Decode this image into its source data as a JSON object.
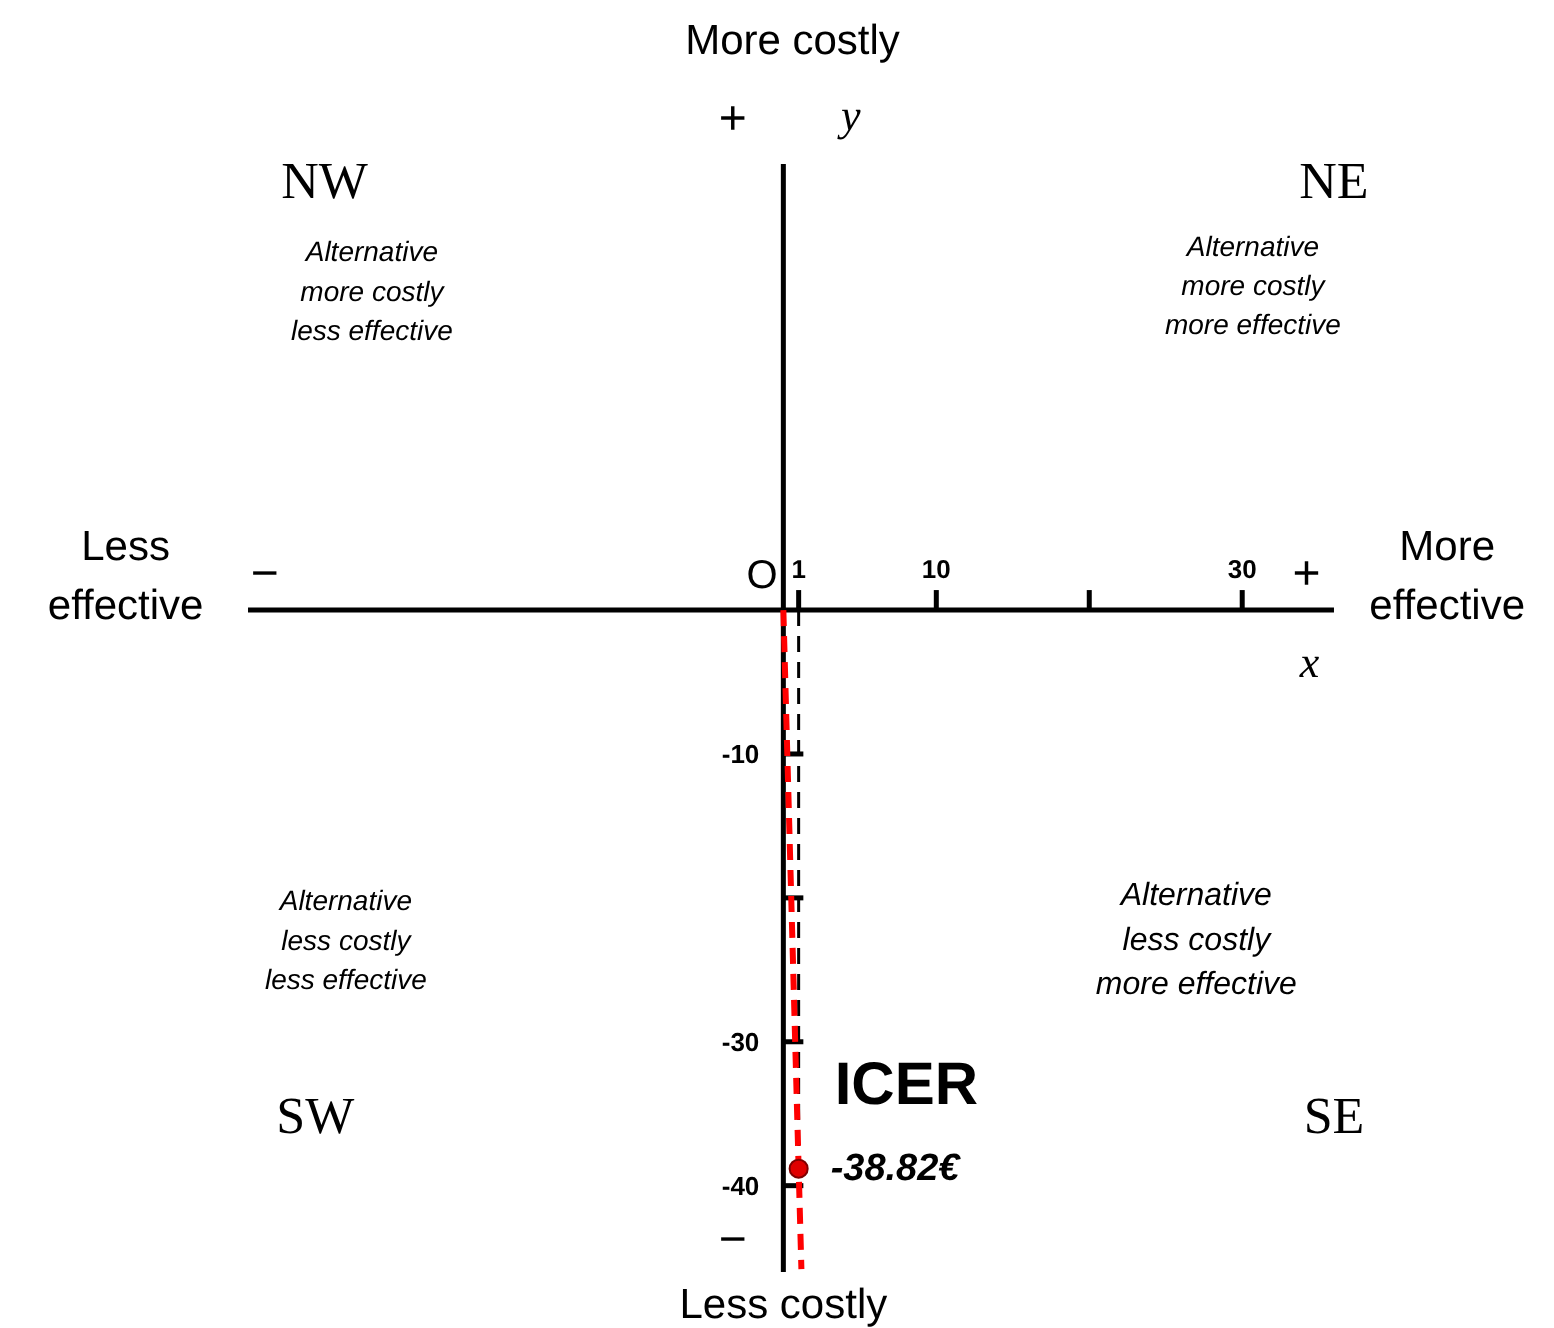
{
  "chart_data": {
    "type": "scatter",
    "xlabel": "x",
    "ylabel": "y",
    "xlim": [
      -35,
      36
    ],
    "ylim": [
      -46,
      31
    ],
    "xticks": [
      1,
      10,
      {
        "value": 20,
        "label": null
      },
      30
    ],
    "yticks": [
      -10,
      {
        "value": -20,
        "label": null
      },
      -30,
      -40
    ],
    "grid": false,
    "series": [
      {
        "type": "line",
        "x": [
          0,
          1.18
        ],
        "values": [
          0,
          -45.8
        ],
        "color": "#ff0000",
        "line_style": "dashed",
        "marker": "none"
      },
      {
        "type": "scatter",
        "x": [
          1
        ],
        "values": [
          -38.82
        ],
        "color": "#e00000",
        "marker": "circle",
        "value_labels": [
          "-38.82€"
        ]
      }
    ],
    "ref_lines": [
      {
        "axis": "x",
        "value": 1,
        "color": "#000000",
        "line_style": "dashed"
      }
    ],
    "annotations": [
      {
        "text": "ICER",
        "x": 1,
        "y": -38.82
      },
      "More costly",
      "Less costly",
      "Less effective",
      "More effective",
      "+",
      "−",
      "−",
      "+",
      "O",
      "NW",
      "NE",
      "SW",
      "SE",
      "Alternative\nmore costly\nless effective",
      "Alternative\nmore costly\nmore effective",
      "Alternative\nless costly\nless effective",
      "Alternative\nless costly\nmore effective"
    ]
  }
}
